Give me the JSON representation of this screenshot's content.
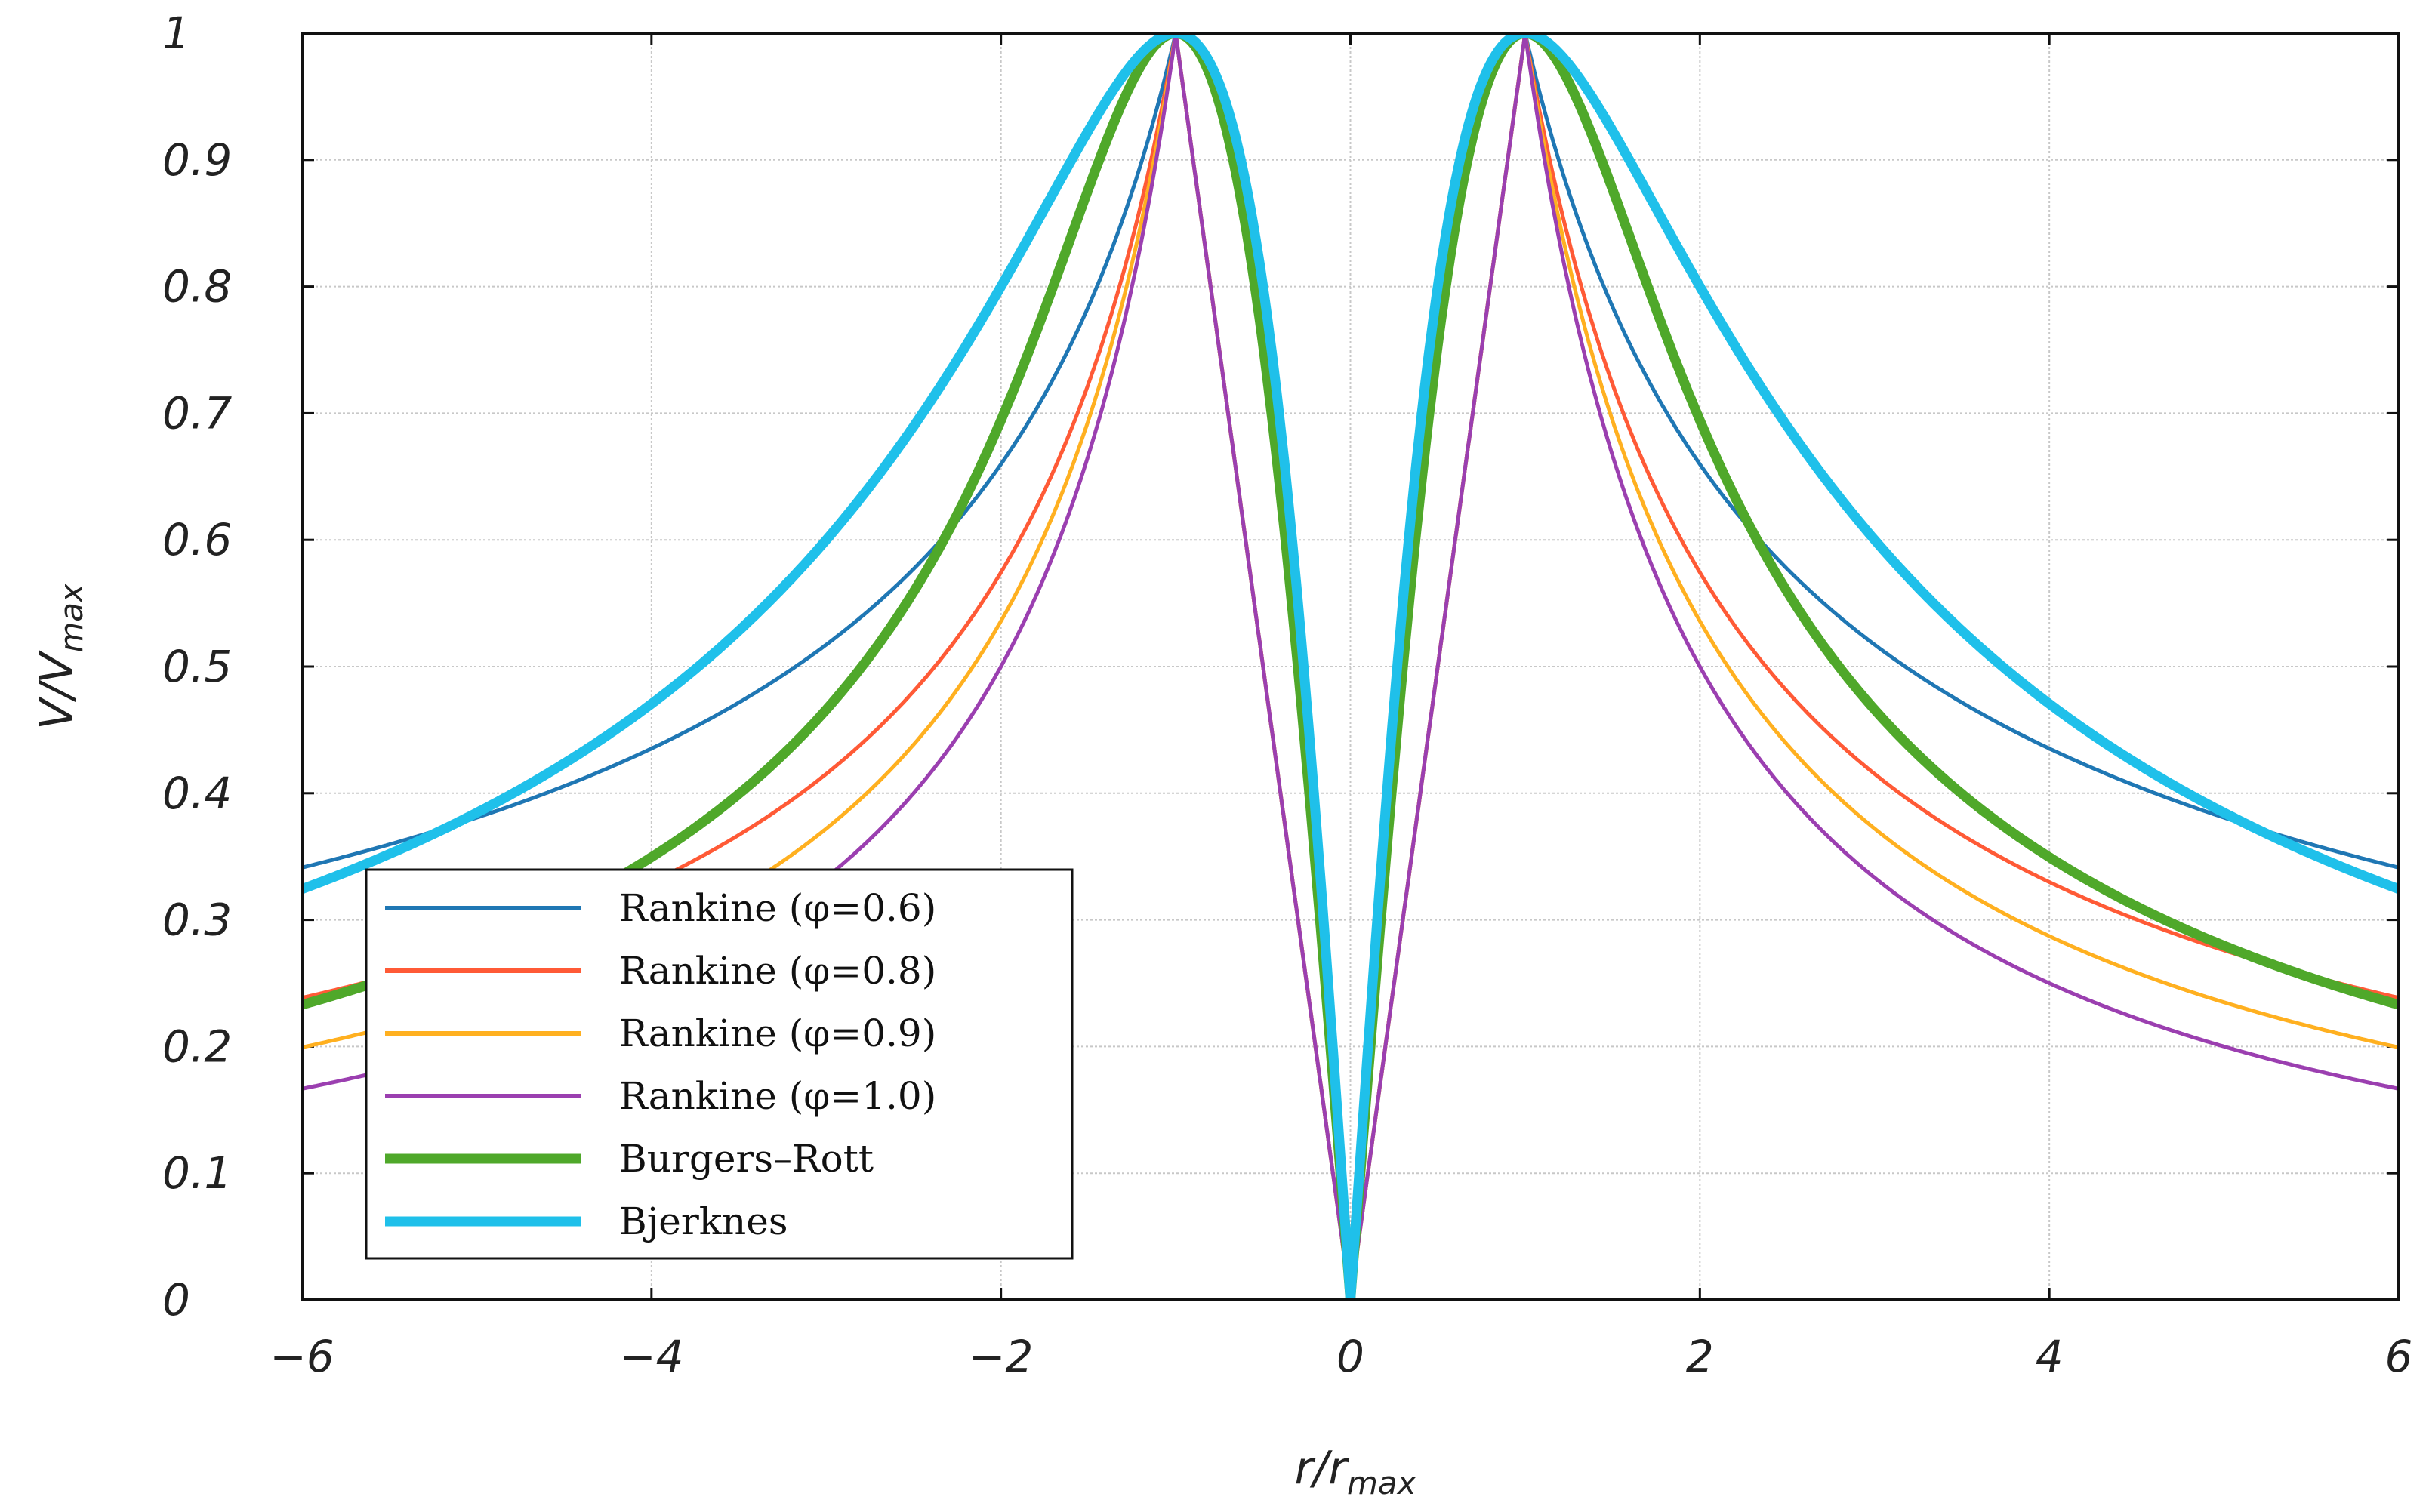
{
  "chart_data": {
    "type": "line",
    "title": "",
    "xlabel": "r/r",
    "xlabel_sub": "max",
    "ylabel": "V/V",
    "ylabel_sub": "max",
    "xlim": [
      -6,
      6
    ],
    "ylim": [
      0,
      1
    ],
    "xticks": [
      -6,
      -4,
      -2,
      0,
      2,
      4,
      6
    ],
    "xtick_labels": [
      "−6",
      "−4",
      "−2",
      "0",
      "2",
      "4",
      "6"
    ],
    "yticks": [
      0,
      0.1,
      0.2,
      0.3,
      0.4,
      0.5,
      0.6,
      0.7,
      0.8,
      0.9,
      1
    ],
    "ytick_labels": [
      "0",
      "0.1",
      "0.2",
      "0.3",
      "0.4",
      "0.5",
      "0.6",
      "0.7",
      "0.8",
      "0.9",
      "1"
    ],
    "grid": true,
    "legend_position": "lower-left",
    "series": [
      {
        "name": "Rankine (φ=0.6)",
        "model": "rankine",
        "phi": 0.6,
        "color": "#1f77b4",
        "weight": "thin"
      },
      {
        "name": "Rankine (φ=0.8)",
        "model": "rankine",
        "phi": 0.8,
        "color": "#ff5a36",
        "weight": "thin"
      },
      {
        "name": "Rankine (φ=0.9)",
        "model": "rankine",
        "phi": 0.9,
        "color": "#ffb020",
        "weight": "thin"
      },
      {
        "name": "Rankine (φ=1.0)",
        "model": "rankine",
        "phi": 1.0,
        "color": "#9b3fb0",
        "weight": "thin"
      },
      {
        "name": "Burgers–Rott",
        "model": "burgers-rott",
        "color": "#4fa82a",
        "weight": "thick"
      },
      {
        "name": "Bjerknes",
        "model": "bjerknes",
        "color": "#1fc0ea",
        "weight": "thick"
      }
    ]
  }
}
